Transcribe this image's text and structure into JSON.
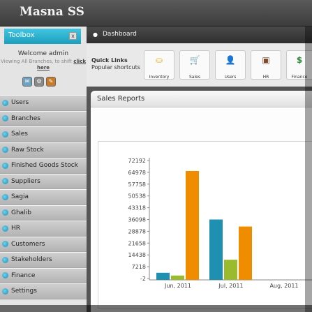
{
  "app": {
    "title": "Masna SS"
  },
  "toolbox": {
    "title": "Toolbox",
    "close_label": "x"
  },
  "welcome": {
    "greeting": "Welcome admin",
    "sub_text": "Viewing All Branches, to shift",
    "link_text": "click here"
  },
  "mini_icons": [
    {
      "icon": "mail-icon",
      "glyph": "✉"
    },
    {
      "icon": "settings-icon",
      "glyph": "⚙"
    },
    {
      "icon": "tools-icon",
      "glyph": "✎"
    }
  ],
  "sidebar": {
    "items": [
      {
        "label": "Users"
      },
      {
        "label": "Branches"
      },
      {
        "label": "Sales"
      },
      {
        "label": "Raw Stock"
      },
      {
        "label": "Finished Goods Stock"
      },
      {
        "label": "Suppliers"
      },
      {
        "label": "Sagia"
      },
      {
        "label": "Ghalib"
      },
      {
        "label": "HR"
      },
      {
        "label": "Customers"
      },
      {
        "label": "Stakeholders"
      },
      {
        "label": "Finance"
      },
      {
        "label": "Settings"
      }
    ]
  },
  "dashboard": {
    "label": "Dashboard"
  },
  "quick_links": {
    "title": "Quick Links",
    "subtitle": "Popular shortcuts",
    "tiles": [
      {
        "label": "Inventory",
        "icon": "inventory-icon",
        "glyph": "⛀",
        "color": "#e8b020"
      },
      {
        "label": "Sales",
        "icon": "cart-icon",
        "glyph": "🛒",
        "color": "#c0392b"
      },
      {
        "label": "Users",
        "icon": "user-icon",
        "glyph": "👤",
        "color": "#2f6fb5"
      },
      {
        "label": "HR",
        "icon": "hr-icon",
        "glyph": "▣",
        "color": "#7a4b2a"
      },
      {
        "label": "Finance",
        "icon": "dollar-icon",
        "glyph": "$",
        "color": "#2e8b3a"
      }
    ]
  },
  "sales_reports": {
    "title": "Sales Reports"
  },
  "chart_data": {
    "type": "bar",
    "categories": [
      "Jun, 2011",
      "Jul, 2011",
      "Aug, 2011"
    ],
    "y_ticks": [
      "72192",
      "64978",
      "57758",
      "50538",
      "43318",
      "36098",
      "28878",
      "21658",
      "14438",
      "7218",
      "-2"
    ],
    "ylim": [
      -2,
      72192
    ],
    "series": [
      {
        "values": [
          3500,
          36098,
          0
        ],
        "color": "#1f8fb2"
      },
      {
        "values": [
          1800,
          11500,
          0
        ],
        "color": "#9bbb2f"
      },
      {
        "values": [
          65800,
          31800,
          0
        ],
        "color": "#f08c00"
      }
    ],
    "grid": false
  }
}
